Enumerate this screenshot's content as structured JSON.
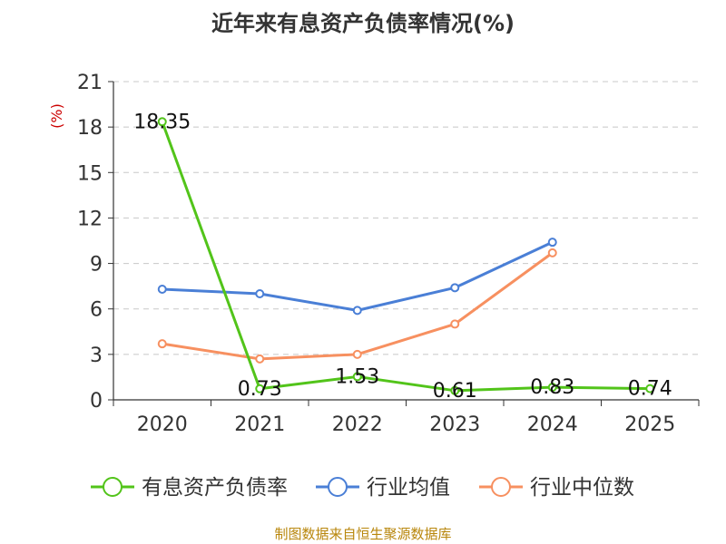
{
  "chart_data": {
    "type": "line",
    "title": "近年来有息资产负债率情况(%)",
    "unit": "(%)",
    "categories": [
      "2020",
      "2021",
      "2022",
      "2023",
      "2024",
      "2025"
    ],
    "ylim": [
      0,
      21
    ],
    "yticks": [
      0,
      3,
      6,
      9,
      12,
      15,
      18,
      21
    ],
    "grid": true,
    "legend_position": "bottom",
    "series": [
      {
        "name": "有息资产负债率",
        "color": "#52c41a",
        "values": [
          18.35,
          0.73,
          1.53,
          0.61,
          0.83,
          0.74
        ],
        "labels": [
          "18.35",
          "0.73",
          "1.53",
          "0.61",
          "0.83",
          "0.74"
        ]
      },
      {
        "name": "行业均值",
        "color": "#4a7fd6",
        "values": [
          7.3,
          7.0,
          5.9,
          7.4,
          10.4,
          null
        ]
      },
      {
        "name": "行业中位数",
        "color": "#f79060",
        "values": [
          3.7,
          2.7,
          3.0,
          5.0,
          9.7,
          null
        ]
      }
    ]
  },
  "source": "制图数据来自恒生聚源数据库"
}
